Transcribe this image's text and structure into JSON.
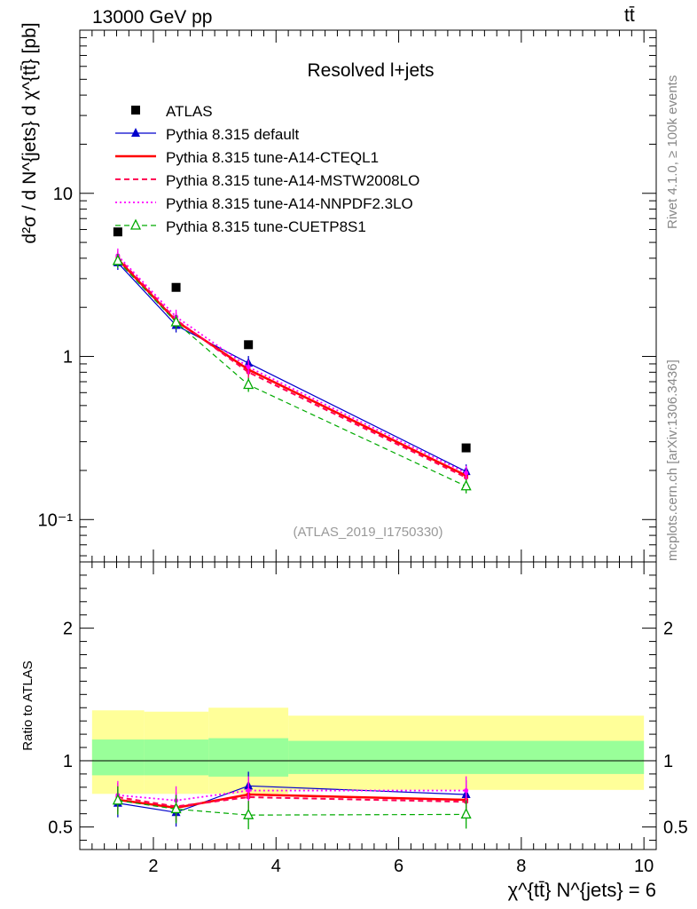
{
  "header": {
    "energy_label": "13000 GeV pp",
    "process_label": "tt̄"
  },
  "side_labels": {
    "rivet": "Rivet 4.1.0, ≥ 100k events",
    "source": "mcplots.cern.ch [arXiv:1306.3436]"
  },
  "chart_data": {
    "type": "line",
    "title": "Resolved l+jets",
    "analysis_tag": "(ATLAS_2019_I1750330)",
    "xlabel": "χ^{tt̄} N^{jets} = 6",
    "ylabel": "d²σ / d N^{jets} d χ^{tt̄} [pb]",
    "ratio_ylabel": "Ratio to ATLAS",
    "xlim": [
      0.8,
      10.2
    ],
    "ylim": [
      0.055,
      100
    ],
    "yscale": "log",
    "ratio_ylim": [
      0.33,
      2.5
    ],
    "x_ticks": [
      "2",
      "4",
      "6",
      "8",
      "10"
    ],
    "y_ticks": [
      "10⁻¹",
      "1",
      "10"
    ],
    "ratio_ticks": [
      "0.5",
      "1",
      "2"
    ],
    "bins": [
      1.0,
      1.85,
      2.9,
      4.2,
      10.0
    ],
    "x": [
      1.42,
      2.37,
      3.55,
      7.1
    ],
    "series": [
      {
        "name": "ATLAS",
        "color": "#000000",
        "values": [
          5.8,
          2.65,
          1.18,
          0.275
        ]
      },
      {
        "name": "Pythia 8.315 default",
        "color": "#0000cc",
        "values": [
          3.75,
          1.55,
          0.91,
          0.197
        ],
        "ratio": [
          0.68,
          0.61,
          0.81,
          0.745
        ]
      },
      {
        "name": "Pythia 8.315 tune-A14-CTEQL1",
        "color": "#ff0000",
        "values": [
          3.95,
          1.65,
          0.83,
          0.186
        ],
        "ratio": [
          0.705,
          0.645,
          0.745,
          0.705
        ]
      },
      {
        "name": "Pythia 8.315 tune-A14-MSTW2008LO",
        "color": "#ff0055",
        "values": [
          4.05,
          1.68,
          0.8,
          0.181
        ],
        "ratio": [
          0.725,
          0.655,
          0.725,
          0.69
        ]
      },
      {
        "name": "Pythia 8.315 tune-A14-NNPDF2.3LO",
        "color": "#ff00ff",
        "values": [
          4.15,
          1.75,
          0.86,
          0.193
        ],
        "ratio": [
          0.74,
          0.7,
          0.775,
          0.775
        ]
      },
      {
        "name": "Pythia 8.315 tune-CUETP8S1",
        "color": "#00aa00",
        "values": [
          3.85,
          1.62,
          0.67,
          0.16
        ],
        "ratio": [
          0.7,
          0.635,
          0.59,
          0.595
        ]
      }
    ],
    "ratio_bands": {
      "yellow": [
        [
          0.75,
          1.38
        ],
        [
          0.75,
          1.37
        ],
        [
          0.75,
          1.4
        ],
        [
          0.78,
          1.34
        ]
      ],
      "green": [
        [
          0.89,
          1.16
        ],
        [
          0.89,
          1.16
        ],
        [
          0.88,
          1.17
        ],
        [
          0.9,
          1.15
        ]
      ]
    }
  }
}
